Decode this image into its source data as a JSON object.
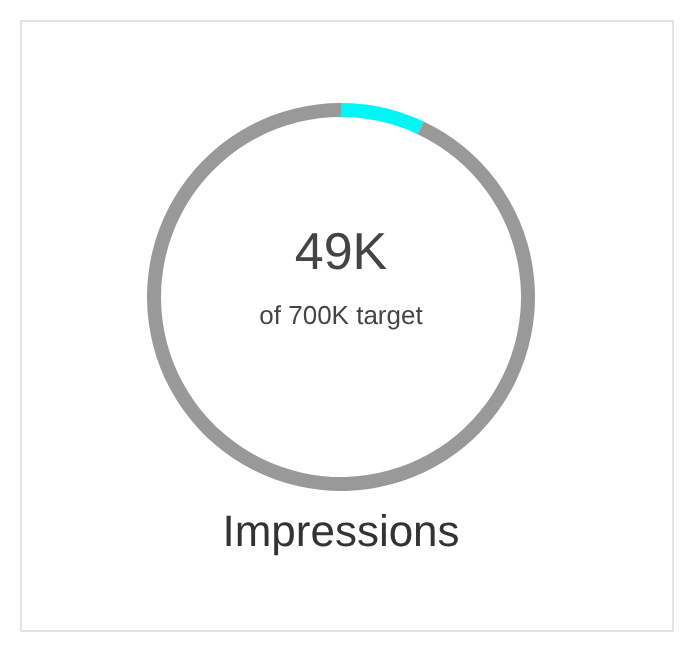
{
  "chart_data": {
    "type": "donut",
    "title": "Impressions",
    "annotations": [
      "49K",
      "of 700K target"
    ],
    "categories": [
      null,
      null
    ],
    "values": [
      7,
      93
    ],
    "colors": [
      "#00f5f5",
      "#999999"
    ]
  }
}
